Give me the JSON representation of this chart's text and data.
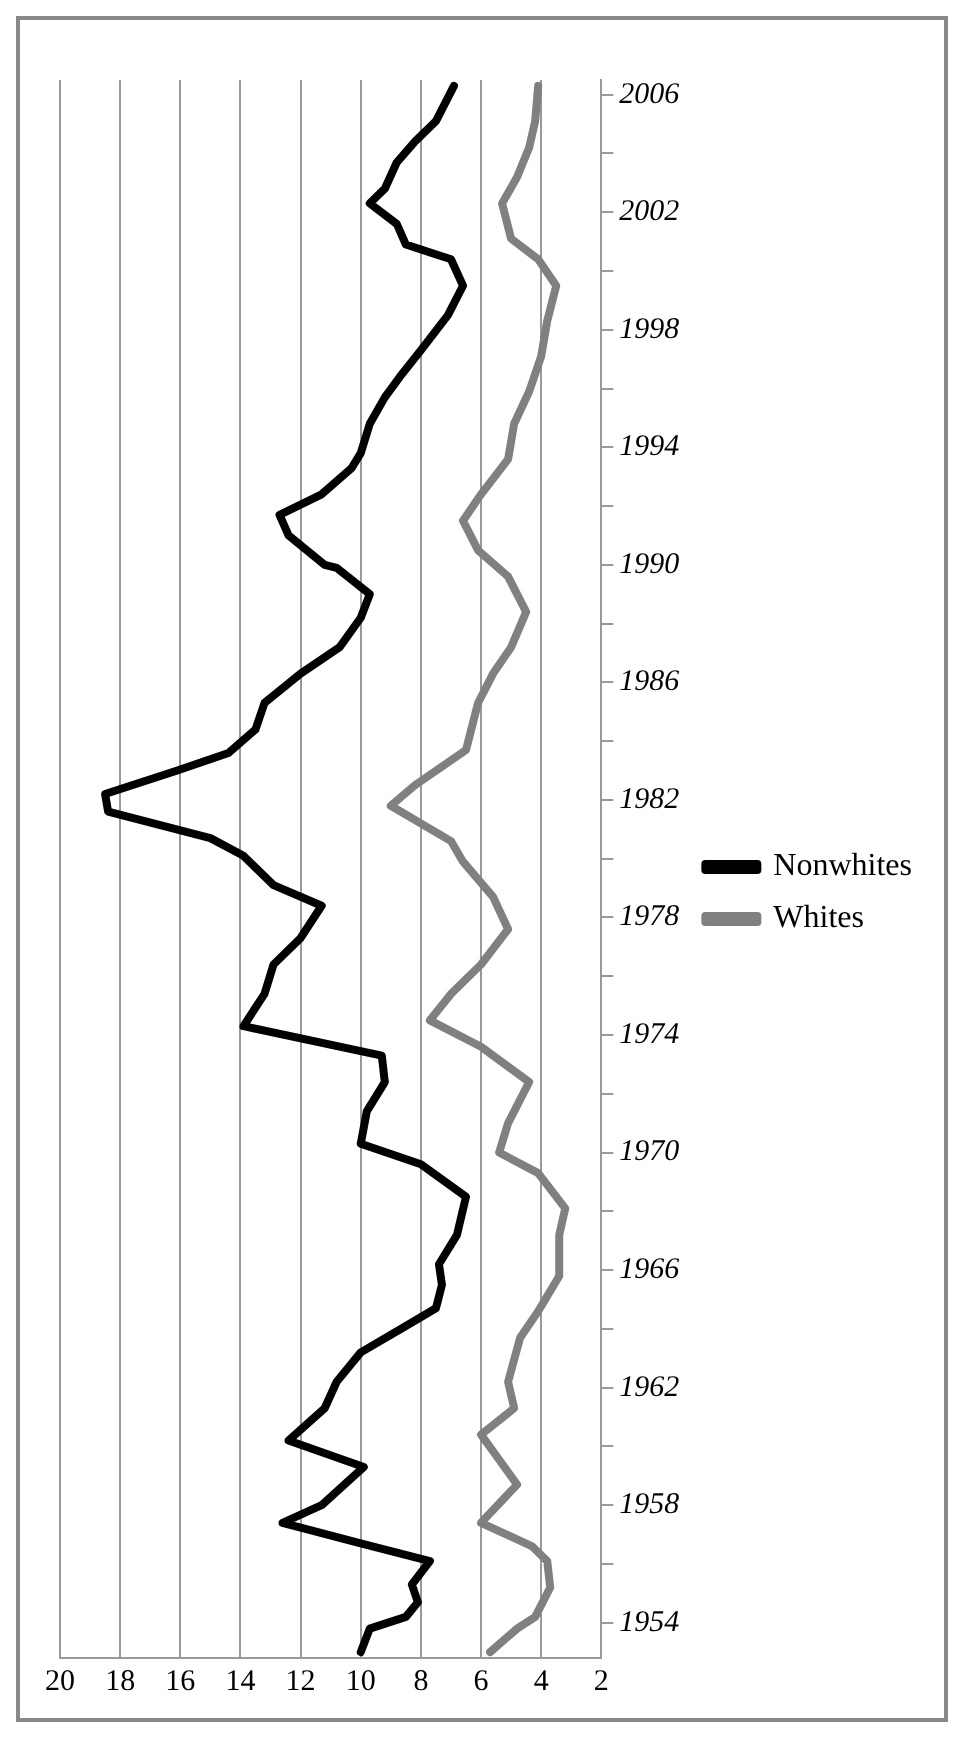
{
  "chart_data": {
    "type": "line",
    "series": [
      {
        "name": "Whites",
        "color": "#808080",
        "values": [
          1953,
          1953.8,
          1954.2,
          1955.2,
          1956.1,
          1956.6,
          1957.4,
          1958.7,
          1960.4,
          1961.3,
          1962.2,
          1963.7,
          1964.6,
          1965.8,
          1967.2,
          1968.1,
          1969.3,
          1970,
          1971,
          1972.4,
          1973.6,
          1974.5,
          1975.4,
          1976.4,
          1977.6,
          1978.7,
          1979.9,
          1980.6,
          1981.8,
          1982.5,
          1983.7,
          1985.3,
          1986.3,
          1987.2,
          1988.4,
          1989.6,
          1990.5,
          1991.5,
          1992.4,
          1993.6,
          1994.8,
          1995.9,
          1997.1,
          1998.3,
          1999.5,
          2000.4,
          2001.1,
          2002.3,
          2003.2,
          2004.2,
          2005.1,
          2006.3
        ],
        "x": [
          5.7,
          4.8,
          4.2,
          3.7,
          3.8,
          4.3,
          6,
          4.8,
          6,
          4.9,
          5.1,
          4.7,
          4.1,
          3.4,
          3.4,
          3.2,
          4.1,
          5.4,
          5.1,
          4.4,
          6,
          7.7,
          7,
          6,
          5.1,
          5.6,
          6.6,
          7,
          9,
          8.2,
          6.5,
          6.1,
          5.6,
          5,
          4.5,
          5.1,
          6.1,
          6.6,
          6,
          5.1,
          4.9,
          4.4,
          4,
          3.8,
          3.5,
          4.1,
          5,
          5.3,
          4.8,
          4.4,
          4.2,
          4.1
        ]
      },
      {
        "name": "Nonwhites",
        "color": "#000000",
        "values": [
          1953,
          1953.8,
          1954.2,
          1954.7,
          1955.3,
          1956.1,
          1956.7,
          1957.4,
          1958,
          1959.3,
          1960.2,
          1961.3,
          1962.2,
          1963.2,
          1964.1,
          1964.7,
          1965.5,
          1966.2,
          1967.2,
          1968.5,
          1969.6,
          1970.3,
          1971.4,
          1972.4,
          1973.3,
          1974.3,
          1975.4,
          1976.4,
          1977.3,
          1978.4,
          1979.1,
          1980.1,
          1980.7,
          1981.6,
          1982.2,
          1983,
          1983.6,
          1984.4,
          1985.3,
          1986.3,
          1987.2,
          1988.2,
          1989,
          1989.9,
          1990,
          1991,
          1991.7,
          1992.4,
          1993.3,
          1993.8,
          1994.8,
          1995.7,
          1996.4,
          1997.3,
          1998.5,
          1999.5,
          2000.4,
          2000.9,
          2001.6,
          2002.3,
          2002.8,
          2003.7,
          2004.4,
          2005.1,
          2006.3
        ],
        "x": [
          10,
          9.7,
          8.5,
          8.1,
          8.3,
          7.7,
          10,
          12.6,
          11.3,
          9.9,
          12.4,
          11.2,
          10.8,
          10,
          8.5,
          7.5,
          7.3,
          7.4,
          6.8,
          6.5,
          8,
          10,
          9.8,
          9.2,
          9.3,
          13.9,
          13.2,
          12.9,
          12,
          11.3,
          12.9,
          13.9,
          15,
          18.4,
          18.5,
          16.1,
          14.4,
          13.5,
          13.2,
          12,
          10.7,
          10,
          9.7,
          10.8,
          11.2,
          12.4,
          12.7,
          11.3,
          10.3,
          10,
          9.7,
          9.2,
          8.7,
          8,
          7.1,
          6.6,
          7,
          8.5,
          8.8,
          9.7,
          9.2,
          8.8,
          8.2,
          7.5,
          6.9
        ]
      }
    ],
    "ylim": [
      1952.8,
      2006.5
    ],
    "yticks": [
      1954,
      {
        "value": 1956,
        "label": null
      },
      1958,
      {
        "value": 1960,
        "label": null
      },
      1962,
      {
        "value": 1964,
        "label": null
      },
      1966,
      {
        "value": 1968,
        "label": null
      },
      1970,
      {
        "value": 1972,
        "label": null
      },
      1974,
      {
        "value": 1976,
        "label": null
      },
      1978,
      {
        "value": 1980,
        "label": null
      },
      1982,
      {
        "value": 1984,
        "label": null
      },
      1986,
      {
        "value": 1988,
        "label": null
      },
      1990,
      {
        "value": 1992,
        "label": null
      },
      1994,
      {
        "value": 1996,
        "label": null
      },
      1998,
      {
        "value": 2000,
        "label": null
      },
      2002,
      {
        "value": 2004,
        "label": null
      },
      2006
    ],
    "xlim": [
      20,
      2
    ],
    "xticks": [
      20,
      18,
      16,
      14,
      12,
      10,
      8,
      6,
      4,
      2
    ],
    "grid": "x",
    "legend": "right",
    "marker": "none",
    "line_style": "solid"
  }
}
